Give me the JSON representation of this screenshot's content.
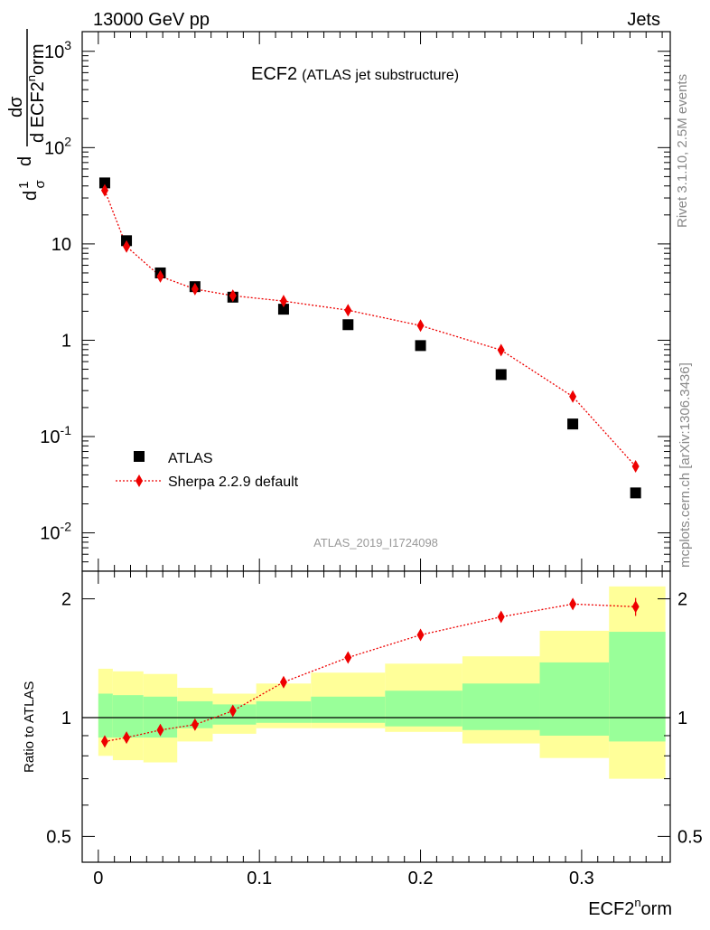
{
  "header": {
    "left": "13000 GeV pp",
    "right": "Jets"
  },
  "plot_title": {
    "main": "ECF2",
    "sub": "(ATLAS jet substructure)"
  },
  "side_labels": {
    "top": "Rivet 3.1.10,  2.5M events",
    "bottom": "mcplots.cern.ch [arXiv:1306.3436]"
  },
  "watermark": "ATLAS_2019_I1724098",
  "y_axis_label": {
    "frac_num": "1",
    "frac_den": "σ",
    "d_num": "dσ",
    "d_den_prefix": "d ECF2",
    "d_den_sup": "n",
    "d_den_suffix": "orm",
    "d_top": "d"
  },
  "x_axis_label": {
    "prefix": "ECF2",
    "sup": "n",
    "suffix": "orm"
  },
  "ratio_label": "Ratio to ATLAS",
  "legend": {
    "data": "ATLAS",
    "mc": "Sherpa 2.2.9 default"
  },
  "colors": {
    "mc": "#ee0000",
    "data": "#000000",
    "band_inner": "#99ff99",
    "band_outer": "#ffff99"
  },
  "chart_data": [
    {
      "type": "scatter",
      "title": "ECF2",
      "xlabel": "ECF2^norm",
      "ylabel": "1/σ dσ/d ECF2^norm",
      "yscale": "log",
      "xlim": [
        -0.01,
        0.355
      ],
      "ylim": [
        0.004,
        1600
      ],
      "y_ticks": [
        "10^-2",
        "10^-1",
        "1",
        "10",
        "10^2",
        "10^3"
      ],
      "legend_position": "lower-left",
      "series": [
        {
          "name": "ATLAS",
          "marker": "square",
          "x": [
            0.004,
            0.0175,
            0.0385,
            0.06,
            0.0835,
            0.115,
            0.155,
            0.2,
            0.25,
            0.2945,
            0.3335
          ],
          "y": [
            43,
            10.8,
            5.0,
            3.6,
            2.8,
            2.1,
            1.45,
            0.88,
            0.44,
            0.135,
            0.026
          ]
        },
        {
          "name": "Sherpa 2.2.9 default",
          "marker": "diamond",
          "line": "dotted",
          "x": [
            0.004,
            0.0175,
            0.0385,
            0.06,
            0.0835,
            0.115,
            0.155,
            0.2,
            0.25,
            0.2945,
            0.3335
          ],
          "y": [
            36,
            9.4,
            4.6,
            3.4,
            2.9,
            2.55,
            2.05,
            1.42,
            0.79,
            0.26,
            0.049
          ]
        }
      ]
    },
    {
      "type": "line",
      "ylabel": "Ratio to ATLAS",
      "yscale": "log",
      "xlim": [
        -0.01,
        0.355
      ],
      "ylim": [
        0.43,
        2.35
      ],
      "x_ticks": [
        "0",
        "0.1",
        "0.2",
        "0.3"
      ],
      "y_ticks": [
        "0.5",
        "1",
        "2"
      ],
      "reference_line": 1,
      "bins": [
        {
          "lo": 0.0,
          "hi": 0.009,
          "in_lo": 0.89,
          "in_hi": 1.15,
          "out_lo": 0.8,
          "out_hi": 1.33
        },
        {
          "lo": 0.009,
          "hi": 0.028,
          "in_lo": 0.89,
          "in_hi": 1.14,
          "out_lo": 0.78,
          "out_hi": 1.31
        },
        {
          "lo": 0.028,
          "hi": 0.049,
          "in_lo": 0.89,
          "in_hi": 1.13,
          "out_lo": 0.77,
          "out_hi": 1.29
        },
        {
          "lo": 0.049,
          "hi": 0.071,
          "in_lo": 0.94,
          "in_hi": 1.1,
          "out_lo": 0.87,
          "out_hi": 1.19
        },
        {
          "lo": 0.071,
          "hi": 0.098,
          "in_lo": 0.96,
          "in_hi": 1.08,
          "out_lo": 0.91,
          "out_hi": 1.15
        },
        {
          "lo": 0.098,
          "hi": 0.132,
          "in_lo": 0.97,
          "in_hi": 1.1,
          "out_lo": 0.94,
          "out_hi": 1.22
        },
        {
          "lo": 0.132,
          "hi": 0.178,
          "in_lo": 0.97,
          "in_hi": 1.13,
          "out_lo": 0.94,
          "out_hi": 1.3
        },
        {
          "lo": 0.178,
          "hi": 0.226,
          "in_lo": 0.95,
          "in_hi": 1.17,
          "out_lo": 0.92,
          "out_hi": 1.37
        },
        {
          "lo": 0.226,
          "hi": 0.274,
          "in_lo": 0.93,
          "in_hi": 1.22,
          "out_lo": 0.86,
          "out_hi": 1.43
        },
        {
          "lo": 0.274,
          "hi": 0.317,
          "in_lo": 0.9,
          "in_hi": 1.38,
          "out_lo": 0.79,
          "out_hi": 1.66
        },
        {
          "lo": 0.317,
          "hi": 0.352,
          "in_lo": 0.87,
          "in_hi": 1.65,
          "out_lo": 0.7,
          "out_hi": 2.15
        }
      ],
      "series": [
        {
          "name": "Sherpa 2.2.9 default",
          "x": [
            0.004,
            0.0175,
            0.0385,
            0.06,
            0.0835,
            0.115,
            0.155,
            0.2,
            0.25,
            0.2945,
            0.3335
          ],
          "y": [
            0.87,
            0.89,
            0.93,
            0.96,
            1.04,
            1.23,
            1.42,
            1.62,
            1.8,
            1.94,
            1.91
          ],
          "err": [
            0,
            0,
            0,
            0,
            0,
            0,
            0,
            0,
            0,
            0,
            0.1
          ]
        }
      ]
    }
  ]
}
